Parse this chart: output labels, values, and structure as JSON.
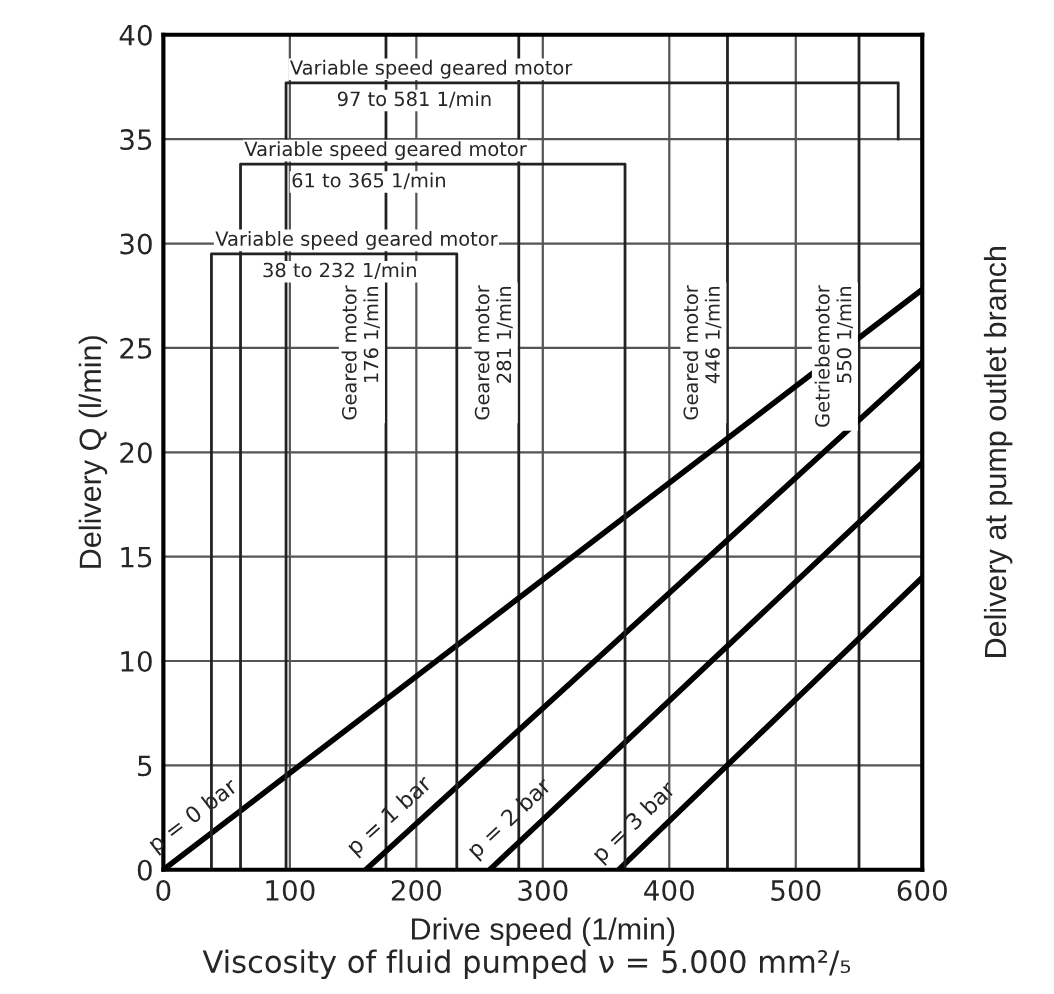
{
  "chart_data": {
    "type": "line",
    "xlabel": "Drive speed (1/min)",
    "ylabel": "Delivery Q (l/min)",
    "y2label": "Delivery at pump outlet branch",
    "annotations": [
      "Viscosity of fluid pumped ν = 5.000 mm²/₅",
      {
        "text": "Variable speed geared motor\n38 to 232 1/min",
        "x": 38,
        "y": 29.5
      },
      {
        "text": "Variable speed geared motor\n61 to 365 1/min",
        "x": 61,
        "y": 33.8
      },
      {
        "text": "Variable speed geared motor\n97 to 581 1/min",
        "x": 97,
        "y": 37.7
      }
    ],
    "series": [
      {
        "name": "p = 0 bar",
        "color": "#000000",
        "x": [
          0,
          600
        ],
        "values": [
          0,
          27.8
        ]
      },
      {
        "name": "p = 1 bar",
        "color": "#000000",
        "x": [
          160,
          600
        ],
        "values": [
          0,
          24.3
        ]
      },
      {
        "name": "p = 2 bar",
        "color": "#000000",
        "x": [
          258,
          600
        ],
        "values": [
          0,
          19.5
        ]
      },
      {
        "name": "p = 3 bar",
        "color": "#000000",
        "x": [
          360,
          600
        ],
        "values": [
          0,
          14
        ]
      },
      {
        "color": "#222222",
        "x": [
          38,
          38,
          232,
          232
        ],
        "values": [
          0,
          29.5,
          29.5,
          0
        ]
      },
      {
        "color": "#222222",
        "x": [
          61,
          61,
          365,
          365
        ],
        "values": [
          0,
          33.8,
          33.8,
          0
        ]
      },
      {
        "color": "#222222",
        "x": [
          97,
          97,
          581,
          581
        ],
        "values": [
          0,
          37.7,
          37.7,
          35
        ]
      }
    ],
    "xlim": [
      0,
      600
    ],
    "xticks": [
      0,
      100,
      200,
      300,
      400,
      500,
      600
    ],
    "ylim": [
      0,
      40
    ],
    "yticks": [
      0,
      5,
      10,
      15,
      20,
      25,
      30,
      35,
      40
    ],
    "grid": true,
    "legend": false,
    "line_style": "solid",
    "marker": "none",
    "ref_lines": [
      {
        "axis": "x",
        "value": 176,
        "label": "Geared motor\n176 1/min"
      },
      {
        "axis": "x",
        "value": 281,
        "label": "Geared motor\n281 1/min"
      },
      {
        "axis": "x",
        "value": 446,
        "label": "Geared motor\n446 1/min"
      },
      {
        "axis": "x",
        "value": 550,
        "label": "Getriebemotor\n550 1/min"
      }
    ]
  }
}
